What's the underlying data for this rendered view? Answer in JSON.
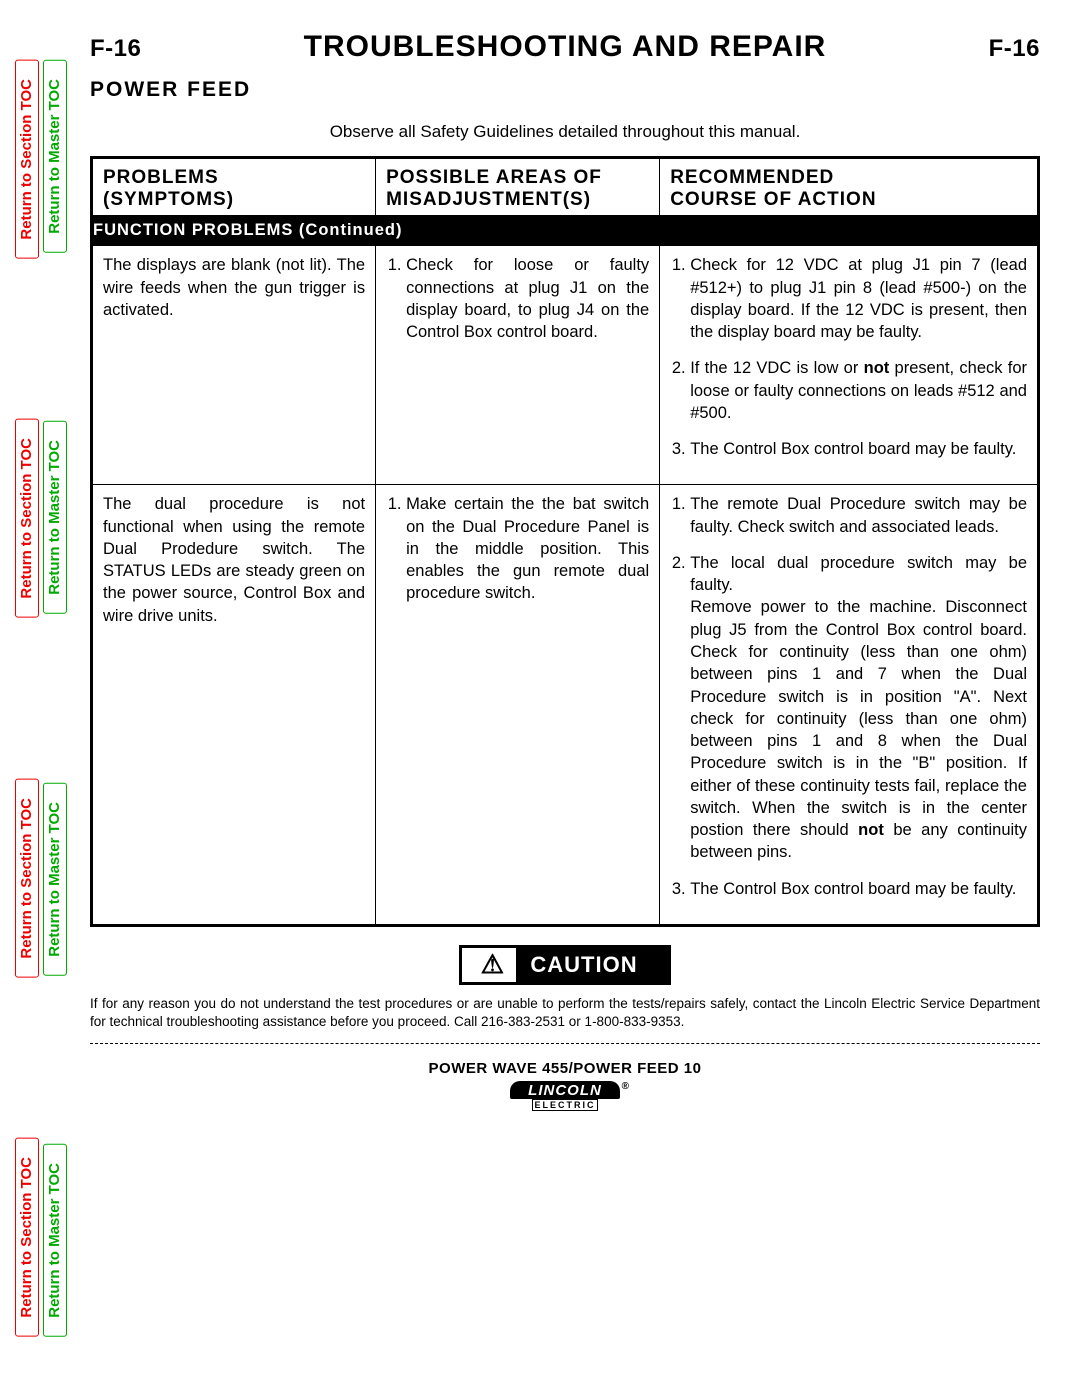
{
  "side_tabs": {
    "section_label": "Return to Section TOC",
    "master_label": "Return to Master TOC",
    "section_color": "#ee0000",
    "master_color": "#00aa00"
  },
  "header": {
    "page_num": "F-16",
    "title": "TROUBLESHOOTING AND REPAIR",
    "subtitle": "POWER  FEED"
  },
  "safety_note": "Observe all Safety Guidelines detailed throughout this manual.",
  "table": {
    "col1_header_l1": "PROBLEMS",
    "col1_header_l2": "(SYMPTOMS)",
    "col2_header_l1": "POSSIBLE  AREAS  OF",
    "col2_header_l2": "MISADJUSTMENT(S)",
    "col3_header_l1": "RECOMMENDED",
    "col3_header_l2": "COURSE  OF  ACTION",
    "band": "FUNCTION  PROBLEMS (Continued)",
    "rows": [
      {
        "symptom": "The displays are blank (not lit). The wire feeds when the gun trigger is activated.",
        "misadjust": [
          "Check for loose or faulty connections at plug J1 on the display board, to plug J4 on the Control Box control board."
        ],
        "action_items": [
          "Check for 12 VDC at plug J1 pin 7 (lead #512+) to plug J1 pin 8 (lead #500-) on the display board.  If the 12 VDC is present, then the display board may be faulty.",
          "If the 12 VDC is low or <b>not</b> present, check for loose or faulty connections on leads #512 and #500.",
          "The Control Box control board may be faulty."
        ]
      },
      {
        "symptom": "The dual procedure is not functional when using the remote Dual Prodedure switch.  The STATUS LEDs are steady green on the power source, Control Box and wire drive units.",
        "misadjust": [
          "Make certain the the bat switch on the Dual Procedure Panel is in the middle position.  This enables the gun remote dual procedure switch."
        ],
        "action_items": [
          "The remote Dual Procedure switch may be faulty.  Check switch and associated leads.",
          "The local dual procedure switch may be faulty."
        ],
        "action_extra_para": "Remove power to the machine. Disconnect plug J5 from the Control Box control board. Check for continuity (less than one ohm) between pins 1 and 7 when the Dual Procedure switch is in position \"A\".  Next check for continuity (less than one ohm) between pins 1 and 8 when the Dual Procedure switch is in the \"B\" position.  If either of these continuity tests fail, replace the switch.  When the switch is in the center postion there should <b>not</b> be any continuity between pins.",
        "action_trailing": [
          "The Control Box control board may be faulty."
        ]
      }
    ]
  },
  "caution": {
    "tri_glyph": "⚠",
    "label": "CAUTION",
    "note": "If for any reason you do not understand the test procedures or are unable to perform the tests/repairs safely, contact the Lincoln Electric Service Department for technical troubleshooting assistance before you proceed. Call 216-383-2531 or 1-800-833-9353."
  },
  "footer": {
    "model": "POWER WAVE 455/POWER FEED 10",
    "logo_top": "LINCOLN",
    "logo_r": "®",
    "logo_bot": "ELECTRIC"
  }
}
